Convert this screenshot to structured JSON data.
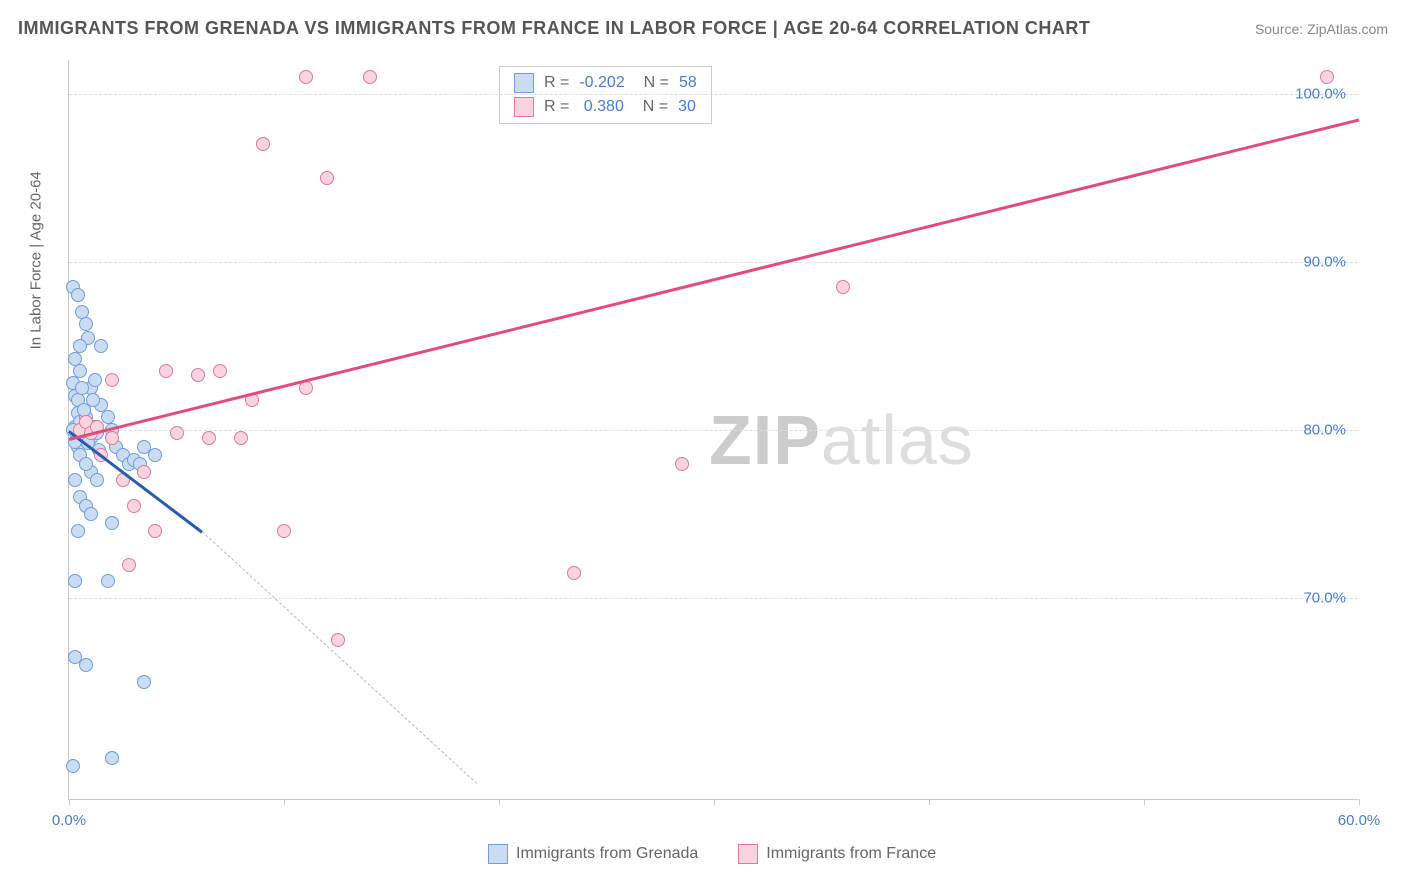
{
  "title": "IMMIGRANTS FROM GRENADA VS IMMIGRANTS FROM FRANCE IN LABOR FORCE | AGE 20-64 CORRELATION CHART",
  "source": "Source: ZipAtlas.com",
  "ylabel": "In Labor Force | Age 20-64",
  "watermark_bold": "ZIP",
  "watermark_rest": "atlas",
  "chart": {
    "type": "scatter",
    "xlim": [
      0,
      60
    ],
    "ylim": [
      58,
      102
    ],
    "xtick_positions": [
      0,
      10,
      20,
      30,
      40,
      50,
      60
    ],
    "xtick_labels": {
      "0": "0.0%",
      "60": "60.0%"
    },
    "ytick_positions": [
      70,
      80,
      90,
      100
    ],
    "ytick_labels": [
      "70.0%",
      "80.0%",
      "90.0%",
      "100.0%"
    ],
    "ytick_color": "#4a7bd0",
    "xtick_color": "#4a7bd0",
    "grid_color": "#dddddd",
    "axis_color": "#c8c8c8",
    "background": "#ffffff"
  },
  "series": [
    {
      "name": "Immigrants from Grenada",
      "fill": "#c9dcf2",
      "stroke": "#6f9ed8",
      "trend_color": "#2a5caa",
      "trend_dash_color": "#bbbbbb",
      "R": "-0.202",
      "N": "58",
      "trend": {
        "x1": 0,
        "y1": 80.0,
        "x2": 6.2,
        "y2": 74.0
      },
      "trend_ext": {
        "x1": 6.2,
        "y1": 74.0,
        "x2": 19.0,
        "y2": 59.0
      },
      "points": [
        [
          0.3,
          80.2
        ],
        [
          0.4,
          81.0
        ],
        [
          0.5,
          80.5
        ],
        [
          0.6,
          80.0
        ],
        [
          0.4,
          79.0
        ],
        [
          0.8,
          80.8
        ],
        [
          1.0,
          79.5
        ],
        [
          1.2,
          80.2
        ],
        [
          0.2,
          88.5
        ],
        [
          0.4,
          88.0
        ],
        [
          0.6,
          87.0
        ],
        [
          0.8,
          86.3
        ],
        [
          0.9,
          85.5
        ],
        [
          0.5,
          85.0
        ],
        [
          0.3,
          82.0
        ],
        [
          1.0,
          82.5
        ],
        [
          1.2,
          83.0
        ],
        [
          1.5,
          81.5
        ],
        [
          1.8,
          80.8
        ],
        [
          2.0,
          80.0
        ],
        [
          2.2,
          79.0
        ],
        [
          2.5,
          78.5
        ],
        [
          2.8,
          78.0
        ],
        [
          3.0,
          78.2
        ],
        [
          3.3,
          78.0
        ],
        [
          3.5,
          79.0
        ],
        [
          4.0,
          78.5
        ],
        [
          1.0,
          77.5
        ],
        [
          1.3,
          77.0
        ],
        [
          0.5,
          78.5
        ],
        [
          0.8,
          78.0
        ],
        [
          0.3,
          77.0
        ],
        [
          0.5,
          76.0
        ],
        [
          0.8,
          75.5
        ],
        [
          1.0,
          75.0
        ],
        [
          0.4,
          74.0
        ],
        [
          2.0,
          74.5
        ],
        [
          0.3,
          71.0
        ],
        [
          1.8,
          71.0
        ],
        [
          0.3,
          66.5
        ],
        [
          0.8,
          66.0
        ],
        [
          3.5,
          65.0
        ],
        [
          0.2,
          60.0
        ],
        [
          2.0,
          60.5
        ],
        [
          0.2,
          82.8
        ],
        [
          0.5,
          83.5
        ],
        [
          0.3,
          84.2
        ],
        [
          1.5,
          85.0
        ],
        [
          0.3,
          79.3
        ],
        [
          0.6,
          79.8
        ],
        [
          0.9,
          79.2
        ],
        [
          1.3,
          79.8
        ],
        [
          0.4,
          81.8
        ],
        [
          0.7,
          81.2
        ],
        [
          1.1,
          81.8
        ],
        [
          0.2,
          80.0
        ],
        [
          0.6,
          82.5
        ],
        [
          1.4,
          78.8
        ]
      ]
    },
    {
      "name": "Immigrants from France",
      "fill": "#f8d4de",
      "stroke": "#e07a9a",
      "trend_color": "#e34b7d",
      "R": "0.380",
      "N": "30",
      "trend": {
        "x1": 0,
        "y1": 79.5,
        "x2": 60,
        "y2": 98.5
      },
      "points": [
        [
          0.5,
          80.0
        ],
        [
          0.8,
          80.5
        ],
        [
          1.0,
          79.8
        ],
        [
          1.3,
          80.2
        ],
        [
          2.0,
          79.5
        ],
        [
          2.5,
          77.0
        ],
        [
          3.0,
          75.5
        ],
        [
          3.5,
          77.5
        ],
        [
          4.0,
          74.0
        ],
        [
          5.0,
          79.8
        ],
        [
          6.0,
          83.3
        ],
        [
          6.5,
          79.5
        ],
        [
          7.0,
          83.5
        ],
        [
          8.0,
          79.5
        ],
        [
          8.5,
          81.8
        ],
        [
          11.0,
          82.5
        ],
        [
          10.0,
          74.0
        ],
        [
          2.8,
          72.0
        ],
        [
          12.5,
          67.5
        ],
        [
          9.0,
          97.0
        ],
        [
          11.0,
          101.0
        ],
        [
          12.0,
          95.0
        ],
        [
          14.0,
          101.0
        ],
        [
          23.5,
          71.5
        ],
        [
          28.5,
          78.0
        ],
        [
          36.0,
          88.5
        ],
        [
          58.5,
          101.0
        ],
        [
          2.0,
          83.0
        ],
        [
          1.5,
          78.5
        ],
        [
          4.5,
          83.5
        ]
      ]
    }
  ],
  "legend": {
    "items": [
      {
        "label": "Immigrants from Grenada",
        "fill": "#c9dcf2",
        "stroke": "#6f9ed8"
      },
      {
        "label": "Immigrants from France",
        "fill": "#f8d4de",
        "stroke": "#e07a9a"
      }
    ]
  }
}
